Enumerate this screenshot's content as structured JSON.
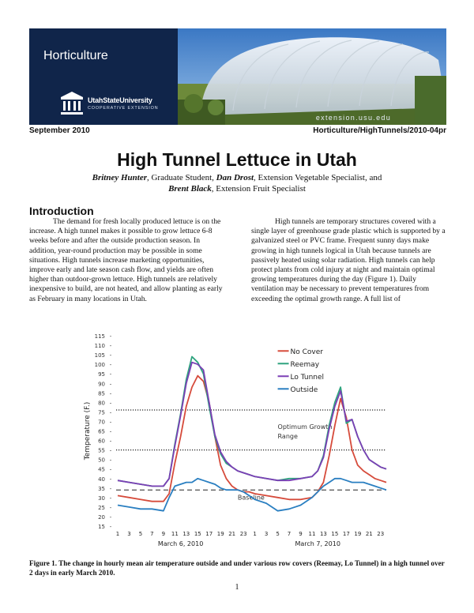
{
  "header": {
    "section": "Horticulture",
    "logo_name": "UtahStateUniversity",
    "logo_sub": "COOPERATIVE EXTENSION",
    "url": "extension.usu.edu"
  },
  "meta": {
    "date": "September 2010",
    "code": "Horticulture/HighTunnels/2010-04pr"
  },
  "document": {
    "title": "High Tunnel Lettuce in Utah",
    "authors": {
      "a1_name": "Britney Hunter",
      "a1_role": ", Graduate Student, ",
      "a2_name": "Dan Drost",
      "a2_role": ", Extension Vegetable Specialist, and",
      "a3_name": "Brent Black",
      "a3_role": ", Extension Fruit Specialist"
    },
    "section_heading": "Introduction",
    "left_paragraph": "The demand for fresh locally produced lettuce is on the increase. A high tunnel makes it possible to grow lettuce 6-8 weeks before and after the outside production season. In addition, year-round production may be possible in some situations. High tunnels increase marketing opportunities, improve early and late season cash flow, and yields are often higher than outdoor-grown lettuce. High tunnels are relatively inexpensive to build, are not heated, and allow planting as early as February in many locations in Utah.",
    "right_paragraph": "High tunnels are temporary structures covered with a single layer of greenhouse grade plastic which is supported by a galvanized steel or PVC frame. Frequent sunny days make growing in high tunnels logical in Utah because tunnels are passively heated using solar radiation. High tunnels can help protect plants from cold injury at night and maintain optimal growing temperatures during the day (Figure 1). Daily ventilation may be necessary to prevent temperatures from exceeding the optimal growth range. A full list of",
    "caption": "Figure 1. The change in hourly mean air temperature outside and under various row covers (Reemay, Lo Tunnel) in a high tunnel over 2 days in early March 2010.",
    "page_number": "1"
  },
  "chart_data": {
    "type": "line",
    "ylabel": "Temperature (F.)",
    "ylim": [
      15,
      115
    ],
    "yticks": [
      15,
      20,
      25,
      30,
      35,
      40,
      45,
      50,
      55,
      60,
      65,
      70,
      75,
      80,
      85,
      90,
      95,
      100,
      105,
      110,
      115
    ],
    "x_tick_labels": [
      "1",
      "3",
      "5",
      "7",
      "9",
      "11",
      "13",
      "15",
      "17",
      "19",
      "21",
      "23",
      "1",
      "3",
      "5",
      "7",
      "9",
      "11",
      "13",
      "15",
      "17",
      "19",
      "21",
      "23"
    ],
    "day_labels": [
      "March 6, 2010",
      "March 7, 2010"
    ],
    "reference_lines": [
      {
        "y": 76,
        "style": "dotted"
      },
      {
        "y": 55,
        "style": "dotted"
      },
      {
        "y": 34,
        "style": "dashed"
      }
    ],
    "annotations": [
      {
        "text": "Optimum Growth",
        "x": 28,
        "y": 66
      },
      {
        "text": "Range",
        "x": 28,
        "y": 61
      },
      {
        "text": "Baseline",
        "x": 21,
        "y": 29
      }
    ],
    "series": [
      {
        "name": "No Cover",
        "color": "#d64b3b",
        "x": [
          0,
          2,
          4,
          6,
          8,
          9,
          10,
          11,
          12,
          13,
          14,
          15,
          16,
          17,
          18,
          19,
          20,
          21,
          22,
          23,
          24,
          26,
          28,
          30,
          32,
          34,
          35,
          36,
          37,
          38,
          39,
          40,
          41,
          42,
          43,
          44,
          45,
          46,
          47
        ],
        "values": [
          31,
          30,
          29,
          28,
          28,
          32,
          48,
          62,
          78,
          88,
          94,
          91,
          80,
          62,
          47,
          40,
          36,
          34,
          33,
          33,
          32,
          31,
          30,
          29,
          29,
          30,
          33,
          38,
          52,
          68,
          82,
          72,
          55,
          47,
          44,
          42,
          40,
          39,
          38
        ]
      },
      {
        "name": "Reemay",
        "color": "#2ea37e",
        "x": [
          0,
          2,
          4,
          6,
          8,
          9,
          10,
          11,
          12,
          13,
          14,
          15,
          16,
          17,
          18,
          19,
          20,
          21,
          22,
          23,
          24,
          26,
          28,
          30,
          32,
          34,
          35,
          36,
          37,
          38,
          39,
          40,
          41,
          42,
          43,
          44,
          45,
          46,
          47
        ],
        "values": [
          39,
          38,
          37,
          36,
          36,
          40,
          58,
          74,
          92,
          104,
          101,
          95,
          78,
          62,
          53,
          48,
          46,
          44,
          43,
          42,
          41,
          40,
          39,
          40,
          40,
          41,
          44,
          52,
          68,
          80,
          88,
          69,
          71,
          62,
          55,
          50,
          48,
          46,
          45
        ]
      },
      {
        "name": "Lo Tunnel",
        "color": "#7b3fb5",
        "x": [
          0,
          2,
          4,
          6,
          8,
          9,
          10,
          11,
          12,
          13,
          14,
          15,
          16,
          17,
          18,
          19,
          20,
          21,
          22,
          23,
          24,
          26,
          28,
          30,
          32,
          34,
          35,
          36,
          37,
          38,
          39,
          40,
          41,
          42,
          43,
          44,
          45,
          46,
          47
        ],
        "values": [
          39,
          38,
          37,
          36,
          36,
          40,
          57,
          73,
          90,
          101,
          100,
          97,
          80,
          63,
          54,
          49,
          46,
          44,
          43,
          42,
          41,
          40,
          39,
          39,
          40,
          41,
          44,
          51,
          66,
          78,
          86,
          70,
          71,
          62,
          55,
          50,
          48,
          46,
          45
        ]
      },
      {
        "name": "Outside",
        "color": "#2a7fc1",
        "x": [
          0,
          2,
          4,
          6,
          8,
          9,
          10,
          11,
          12,
          13,
          14,
          15,
          16,
          17,
          18,
          19,
          20,
          21,
          22,
          23,
          24,
          26,
          28,
          30,
          32,
          34,
          35,
          36,
          37,
          38,
          39,
          40,
          41,
          42,
          43,
          44,
          45,
          46,
          47
        ],
        "values": [
          26,
          25,
          24,
          24,
          23,
          30,
          36,
          37,
          38,
          38,
          40,
          39,
          38,
          37,
          35,
          34,
          34,
          34,
          33,
          31,
          29,
          27,
          23,
          24,
          26,
          30,
          33,
          36,
          38,
          40,
          40,
          39,
          38,
          38,
          38,
          37,
          36,
          35,
          34
        ]
      }
    ]
  }
}
